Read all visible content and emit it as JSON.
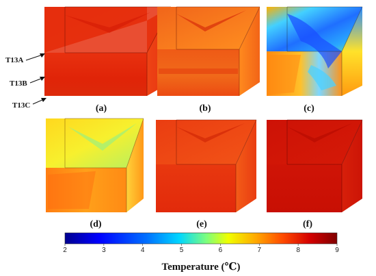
{
  "panels": [
    {
      "id": "a",
      "label": "(a)"
    },
    {
      "id": "b",
      "label": "(b)"
    },
    {
      "id": "c",
      "label": "(c)"
    },
    {
      "id": "d",
      "label": "(d)"
    },
    {
      "id": "e",
      "label": "(e)"
    },
    {
      "id": "f",
      "label": "(f)"
    }
  ],
  "annotations": {
    "t13a": "T13A",
    "t13b": "T13B",
    "t13c": "T13C"
  },
  "colorbar": {
    "title": "Temperature (℃)",
    "ticks": [
      "2",
      "3",
      "4",
      "5",
      "6",
      "7",
      "8",
      "9"
    ],
    "min": 2,
    "max": 9,
    "colors": [
      "#00008f",
      "#0047ff",
      "#00e5ff",
      "#b8ff48",
      "#ffd200",
      "#ff6a00",
      "#e10c00",
      "#800000"
    ]
  },
  "colors": {
    "ink": "#111111",
    "background": "#ffffff"
  }
}
